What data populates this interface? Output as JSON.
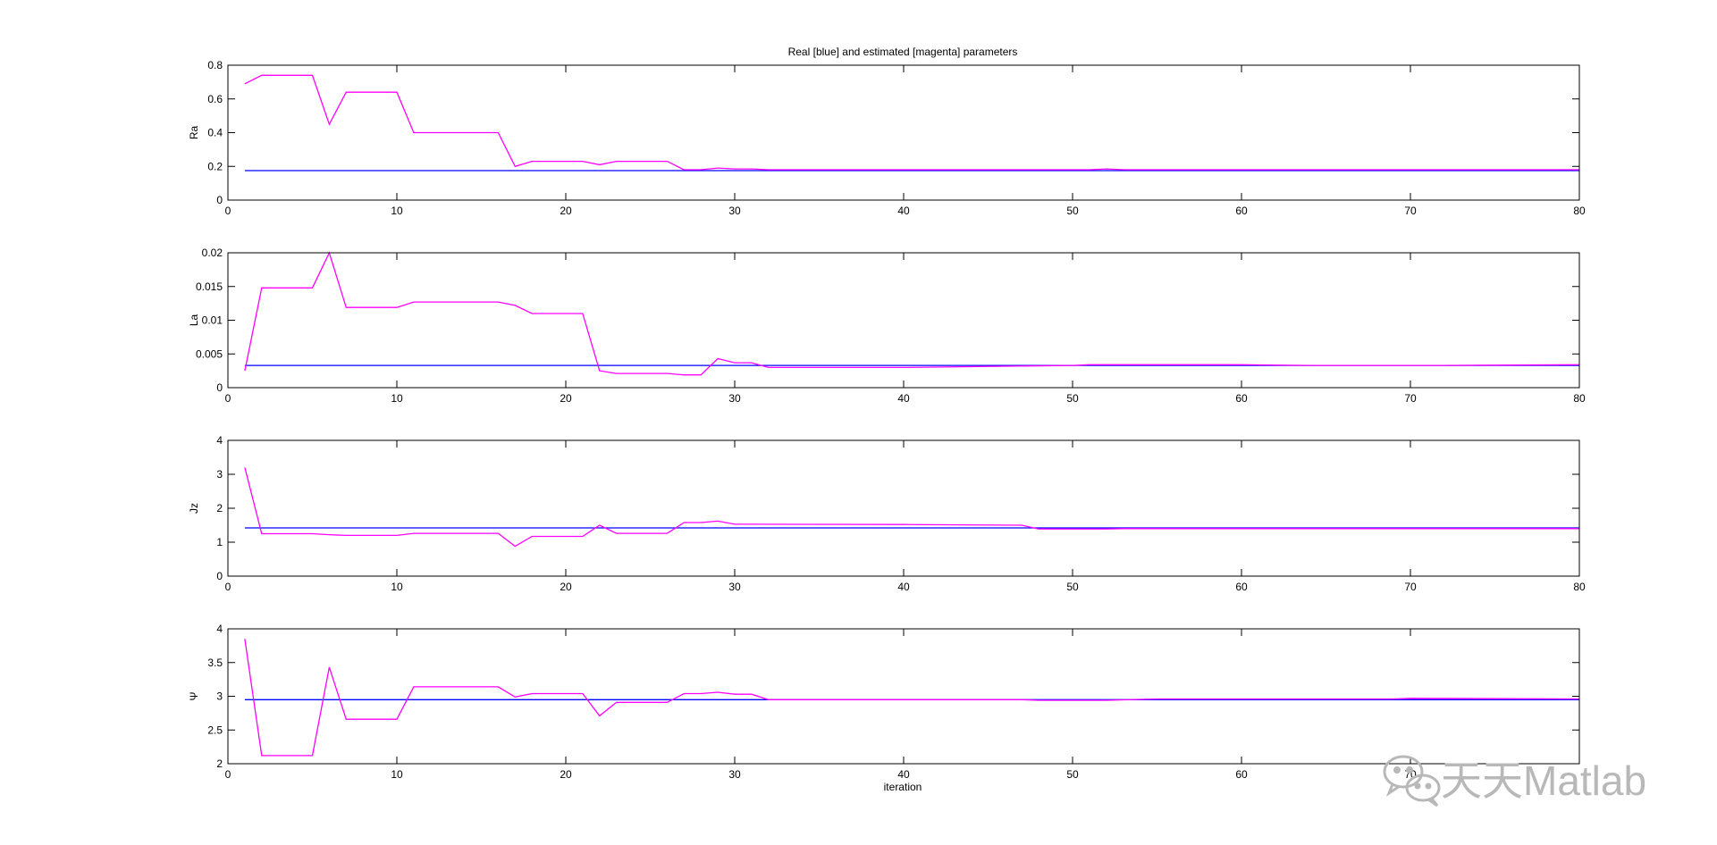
{
  "figure": {
    "title": "Real [blue] and estimated [magenta] parameters",
    "xlabel": "iteration"
  },
  "watermark": {
    "text": "天天Matlab",
    "icon": "wechat-icon"
  },
  "colors": {
    "real": "#0000ff",
    "estimated": "#ff00ff",
    "axes": "#000000",
    "background": "#ffffff"
  },
  "chart_data": [
    {
      "type": "line",
      "ylabel": "Ra",
      "xlim": [
        0,
        80
      ],
      "ylim": [
        0,
        0.8
      ],
      "xticks": [
        0,
        10,
        20,
        30,
        40,
        50,
        60,
        70,
        80
      ],
      "xtick_labels": [
        "0",
        "10",
        "20",
        "30",
        "40",
        "50",
        "60",
        "70",
        "80"
      ],
      "yticks": [
        0,
        0.2,
        0.4,
        0.6,
        0.8
      ],
      "ytick_labels": [
        "0",
        "0.2",
        "0.4",
        "0.6",
        "0.8"
      ],
      "grid": false,
      "series": [
        {
          "name": "real",
          "color": "#0000ff",
          "x": [
            1,
            80
          ],
          "y": [
            0.175,
            0.175
          ]
        },
        {
          "name": "estimated",
          "color": "#ff00ff",
          "x": [
            1,
            2,
            5,
            6,
            7,
            10,
            11,
            16,
            17,
            18,
            21,
            22,
            23,
            26,
            27,
            28,
            29,
            30,
            31,
            32,
            51,
            52,
            53,
            80
          ],
          "y": [
            0.69,
            0.74,
            0.74,
            0.45,
            0.64,
            0.64,
            0.4,
            0.4,
            0.2,
            0.23,
            0.23,
            0.21,
            0.23,
            0.23,
            0.18,
            0.18,
            0.19,
            0.185,
            0.185,
            0.18,
            0.18,
            0.185,
            0.18,
            0.18
          ]
        }
      ]
    },
    {
      "type": "line",
      "ylabel": "La",
      "xlim": [
        0,
        80
      ],
      "ylim": [
        0,
        0.02
      ],
      "xticks": [
        0,
        10,
        20,
        30,
        40,
        50,
        60,
        70,
        80
      ],
      "xtick_labels": [
        "0",
        "10",
        "20",
        "30",
        "40",
        "50",
        "60",
        "70",
        "80"
      ],
      "yticks": [
        0,
        0.005,
        0.01,
        0.015,
        0.02
      ],
      "ytick_labels": [
        "0",
        "0.005",
        "0.01",
        "0.015",
        "0.02"
      ],
      "grid": false,
      "series": [
        {
          "name": "real",
          "color": "#0000ff",
          "x": [
            1,
            80
          ],
          "y": [
            0.0033,
            0.0033
          ]
        },
        {
          "name": "estimated",
          "color": "#ff00ff",
          "x": [
            1,
            2,
            5,
            6,
            7,
            10,
            11,
            16,
            17,
            18,
            21,
            22,
            23,
            26,
            27,
            28,
            29,
            30,
            31,
            32,
            40,
            50,
            51,
            60,
            64,
            72,
            80
          ],
          "y": [
            0.0025,
            0.0148,
            0.0148,
            0.02,
            0.0119,
            0.0119,
            0.0127,
            0.0127,
            0.0122,
            0.011,
            0.011,
            0.0025,
            0.0021,
            0.0021,
            0.0019,
            0.0019,
            0.0043,
            0.0037,
            0.0037,
            0.003,
            0.003,
            0.0033,
            0.0034,
            0.0034,
            0.0033,
            0.0033,
            0.0034
          ]
        }
      ]
    },
    {
      "type": "line",
      "ylabel": "Jz",
      "xlim": [
        0,
        80
      ],
      "ylim": [
        0,
        4
      ],
      "xticks": [
        0,
        10,
        20,
        30,
        40,
        50,
        60,
        70,
        80
      ],
      "xtick_labels": [
        "0",
        "10",
        "20",
        "30",
        "40",
        "50",
        "60",
        "70",
        "80"
      ],
      "yticks": [
        0,
        1,
        2,
        3,
        4
      ],
      "ytick_labels": [
        "0",
        "1",
        "2",
        "3",
        "4"
      ],
      "grid": false,
      "series": [
        {
          "name": "real",
          "color": "#0000ff",
          "x": [
            1,
            80
          ],
          "y": [
            1.42,
            1.42
          ]
        },
        {
          "name": "estimated",
          "color": "#ff00ff",
          "x": [
            1,
            2,
            5,
            6,
            7,
            10,
            11,
            16,
            17,
            18,
            21,
            22,
            23,
            26,
            27,
            28,
            29,
            30,
            31,
            40,
            47,
            48,
            52,
            53,
            80
          ],
          "y": [
            3.2,
            1.25,
            1.25,
            1.22,
            1.2,
            1.2,
            1.26,
            1.26,
            0.88,
            1.17,
            1.17,
            1.5,
            1.26,
            1.26,
            1.58,
            1.58,
            1.62,
            1.53,
            1.53,
            1.52,
            1.5,
            1.39,
            1.39,
            1.4,
            1.4
          ]
        }
      ]
    },
    {
      "type": "line",
      "ylabel": "Ψ",
      "xlim": [
        0,
        80
      ],
      "ylim": [
        2,
        4
      ],
      "xticks": [
        0,
        10,
        20,
        30,
        40,
        50,
        60,
        70
      ],
      "xtick_labels": [
        "0",
        "10",
        "20",
        "30",
        "40",
        "50",
        "60",
        "70"
      ],
      "yticks": [
        2,
        2.5,
        3,
        3.5,
        4
      ],
      "ytick_labels": [
        "2",
        "2.5",
        "3",
        "3.5",
        "4"
      ],
      "grid": false,
      "series": [
        {
          "name": "real",
          "color": "#0000ff",
          "x": [
            1,
            80
          ],
          "y": [
            2.95,
            2.95
          ]
        },
        {
          "name": "estimated",
          "color": "#ff00ff",
          "x": [
            1,
            2,
            5,
            6,
            7,
            10,
            11,
            16,
            17,
            18,
            21,
            22,
            23,
            26,
            27,
            28,
            29,
            30,
            31,
            32,
            47,
            48,
            52,
            55,
            69,
            70,
            80
          ],
          "y": [
            3.85,
            2.12,
            2.12,
            3.43,
            2.66,
            2.66,
            3.14,
            3.14,
            2.99,
            3.04,
            3.04,
            2.71,
            2.91,
            2.91,
            3.04,
            3.04,
            3.06,
            3.03,
            3.03,
            2.95,
            2.95,
            2.94,
            2.94,
            2.96,
            2.96,
            2.97,
            2.96
          ]
        }
      ]
    }
  ]
}
